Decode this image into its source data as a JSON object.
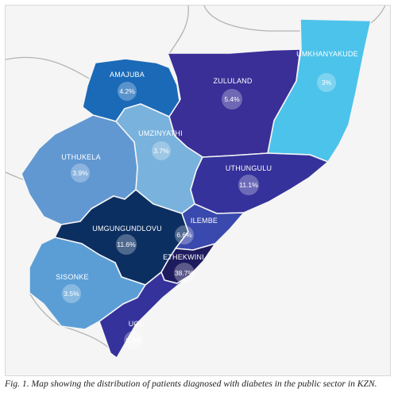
{
  "colors": {
    "background": "#f5f5f5",
    "border_lines": "#b4b4b4",
    "ocean_region_fill": "#2e2c97"
  },
  "regions": {
    "umkhanyakude": {
      "name": "UMKHANYAKUDE",
      "value": "3%",
      "color": "#4cc3eb"
    },
    "zululand": {
      "name": "ZULULAND",
      "value": "5.4%",
      "color": "#3a2f97"
    },
    "amajuba": {
      "name": "AMAJUBA",
      "value": "4.2%",
      "color": "#1a6ab7"
    },
    "umzinyathi": {
      "name": "UMZINYATHI",
      "value": "3.7%",
      "color": "#78b2dd"
    },
    "uthukela": {
      "name": "UTHUKELA",
      "value": "3.9%",
      "color": "#6198d2"
    },
    "uthungulu": {
      "name": "UTHUNGULU",
      "value": "11.1%",
      "color": "#35329b"
    },
    "umgungundlovu": {
      "name": "UMGUNGUNDLOVU",
      "value": "11.6%",
      "color": "#0c2f61"
    },
    "ilembe": {
      "name": "ILEMBE",
      "value": "6.6%",
      "color": "#3949ad"
    },
    "ethekwini": {
      "name": "ETHEKWINI",
      "value": "38.7%",
      "color": "#1e1b5e"
    },
    "sisonke": {
      "name": "SISONKE",
      "value": "3.5%",
      "color": "#5b9ed6"
    },
    "ugu": {
      "name": "UGU",
      "value": "8.3%",
      "color": "#35329b"
    }
  },
  "caption": "Fig. 1. Map showing the distribution of patients diagnosed with diabetes in the public sector in KZN."
}
